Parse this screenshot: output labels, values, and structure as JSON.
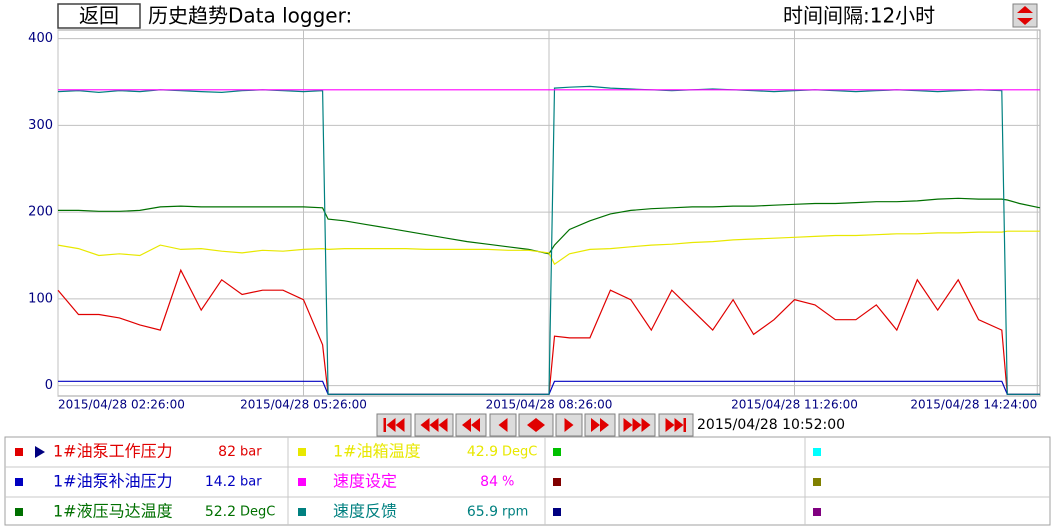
{
  "header": {
    "back_button": "返回",
    "title": "历史趋势Data logger:",
    "interval": "时间间隔:12小时"
  },
  "chart_data": {
    "type": "line",
    "x": [
      146,
      161,
      176,
      191,
      206,
      221,
      236,
      251,
      266,
      281,
      296,
      311,
      326,
      340,
      344,
      356,
      371,
      386,
      401,
      416,
      431,
      446,
      461,
      476,
      491,
      506,
      510,
      521,
      536,
      551,
      566,
      581,
      596,
      611,
      626,
      641,
      656,
      671,
      686,
      701,
      716,
      731,
      746,
      761,
      776,
      791,
      806,
      821,
      838,
      842,
      851,
      866
    ],
    "xlim": [
      146,
      866
    ],
    "xticks": [
      {
        "value": 146,
        "label": "2015/04/28 02:26:00"
      },
      {
        "value": 326,
        "label": "2015/04/28 05:26:00"
      },
      {
        "value": 506,
        "label": "2015/04/28 08:26:00"
      },
      {
        "value": 686,
        "label": "2015/04/28 11:26:00"
      },
      {
        "value": 864,
        "label": "2015/04/28 14:24:00"
      }
    ],
    "ylim": [
      -12,
      410
    ],
    "yticks": [
      0,
      100,
      200,
      300,
      400
    ],
    "grid": true,
    "series": [
      {
        "name": "1#油泵工作压力",
        "color": "#e00000",
        "reading": 82,
        "unit": "bar",
        "values": [
          110,
          82,
          82,
          78,
          70,
          64,
          133,
          87,
          122,
          105,
          110,
          110,
          99,
          47,
          -10,
          -10,
          -10,
          -10,
          -10,
          -10,
          -10,
          -10,
          -10,
          -10,
          -10,
          -10,
          57,
          55,
          55,
          110,
          99,
          64,
          110,
          87,
          64,
          99,
          59,
          76,
          99,
          93,
          76,
          76,
          93,
          64,
          122,
          87,
          122,
          76,
          64,
          -10,
          -10,
          -10
        ]
      },
      {
        "name": "1#油泵补油压力",
        "color": "#0000c0",
        "reading": 14.2,
        "unit": "bar",
        "values": [
          5,
          5,
          5,
          5,
          5,
          5,
          5,
          5,
          5,
          5,
          5,
          5,
          5,
          5,
          -10,
          -10,
          -10,
          -10,
          -10,
          -10,
          -10,
          -10,
          -10,
          -10,
          -10,
          -10,
          5,
          5,
          5,
          5,
          5,
          5,
          5,
          5,
          5,
          5,
          5,
          5,
          5,
          5,
          5,
          5,
          5,
          5,
          5,
          5,
          5,
          5,
          5,
          -10,
          -10,
          -10
        ]
      },
      {
        "name": "1#液压马达温度",
        "color": "#007000",
        "reading": 52.2,
        "unit": "DegC",
        "values": [
          202,
          202,
          201,
          201,
          202,
          206,
          207,
          206,
          206,
          206,
          206,
          206,
          206,
          205,
          192,
          190,
          186,
          182,
          178,
          174,
          170,
          166,
          163,
          160,
          157,
          152,
          162,
          180,
          190,
          198,
          202,
          204,
          205,
          206,
          206,
          207,
          207,
          208,
          209,
          210,
          210,
          211,
          212,
          212,
          213,
          215,
          216,
          215,
          215,
          214,
          210,
          205
        ]
      },
      {
        "name": "1#油箱温度",
        "color": "#e8e800",
        "reading": 42.9,
        "unit": "DegC",
        "values": [
          162,
          158,
          150,
          152,
          150,
          162,
          157,
          158,
          155,
          153,
          156,
          155,
          157,
          158,
          157,
          158,
          158,
          158,
          158,
          157,
          157,
          157,
          157,
          156,
          156,
          153,
          140,
          152,
          157,
          158,
          160,
          162,
          163,
          165,
          166,
          168,
          169,
          170,
          171,
          172,
          173,
          173,
          174,
          175,
          175,
          176,
          176,
          177,
          177,
          178,
          178,
          178
        ]
      },
      {
        "name": "速度设定",
        "color": "#ff00ff",
        "reading": 84,
        "unit": "%",
        "values": [
          341,
          341,
          341,
          341,
          341,
          341,
          341,
          341,
          341,
          341,
          341,
          341,
          341,
          341,
          341,
          341,
          341,
          341,
          341,
          341,
          341,
          341,
          341,
          341,
          341,
          341,
          341,
          341,
          341,
          341,
          341,
          341,
          341,
          341,
          341,
          341,
          341,
          341,
          341,
          341,
          341,
          341,
          341,
          341,
          341,
          341,
          341,
          341,
          341,
          341,
          341,
          341
        ]
      },
      {
        "name": "速度反馈",
        "color": "#008080",
        "reading": 65.9,
        "unit": "rpm",
        "values": [
          339,
          340,
          338,
          340,
          339,
          341,
          340,
          339,
          338,
          340,
          341,
          340,
          339,
          340,
          -10,
          -10,
          -10,
          -10,
          -10,
          -10,
          -10,
          -10,
          -10,
          -10,
          -10,
          -10,
          343,
          344,
          345,
          343,
          342,
          341,
          340,
          341,
          342,
          341,
          340,
          339,
          340,
          341,
          340,
          339,
          340,
          341,
          340,
          339,
          340,
          341,
          340,
          -10,
          -10,
          -10
        ]
      }
    ]
  },
  "navigation": {
    "cursor_time": "2015/04/28 10:52:00"
  },
  "legend_table": {
    "empty_slot_colors": [
      "#00c000",
      "#800000",
      "#000080",
      "#00ffff",
      "#808000",
      "#800080"
    ]
  }
}
